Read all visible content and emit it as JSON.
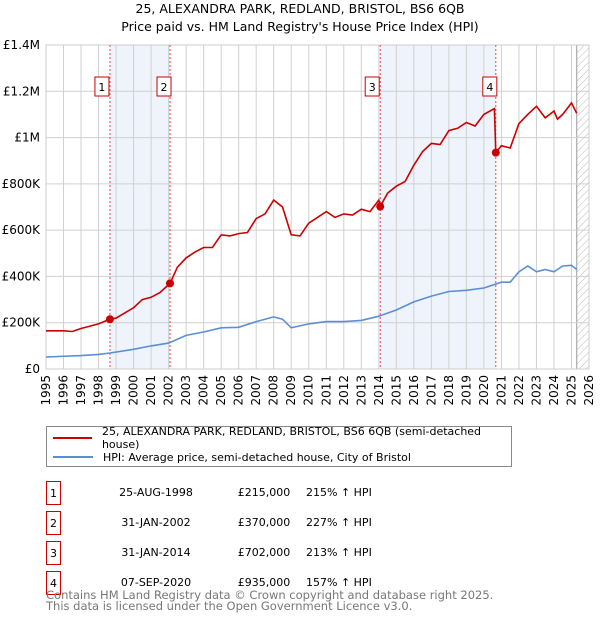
{
  "chart_data": {
    "type": "line",
    "title": "25, ALEXANDRA PARK, REDLAND, BRISTOL, BS6 6QB",
    "subtitle": "Price paid vs. HM Land Registry's House Price Index (HPI)",
    "xlim": [
      1995,
      2026
    ],
    "ylim": [
      0,
      1400000
    ],
    "grid": true,
    "y_ticks": [
      {
        "v": 0,
        "label": "£0"
      },
      {
        "v": 200000,
        "label": "£200K"
      },
      {
        "v": 400000,
        "label": "£400K"
      },
      {
        "v": 600000,
        "label": "£600K"
      },
      {
        "v": 800000,
        "label": "£800K"
      },
      {
        "v": 1000000,
        "label": "£1M"
      },
      {
        "v": 1200000,
        "label": "£1.2M"
      },
      {
        "v": 1400000,
        "label": "£1.4M"
      }
    ],
    "x_ticks": [
      "1995",
      "1996",
      "1997",
      "1998",
      "1999",
      "2000",
      "2001",
      "2002",
      "2003",
      "2004",
      "2005",
      "2006",
      "2007",
      "2008",
      "2009",
      "2010",
      "2011",
      "2012",
      "2013",
      "2014",
      "2015",
      "2016",
      "2017",
      "2018",
      "2019",
      "2020",
      "2021",
      "2022",
      "2023",
      "2024",
      "2025",
      "2026"
    ],
    "shaded_ranges": [
      [
        1998.65,
        2002.08
      ],
      [
        2014.08,
        2020.68
      ]
    ],
    "hatched_from": 2025.3,
    "series": [
      {
        "name": "25, ALEXANDRA PARK, REDLAND, BRISTOL, BS6 6QB (semi-detached house)",
        "color": "#cc0000",
        "x": [
          1995,
          1996,
          1996.5,
          1997,
          1998,
          1998.65,
          1999,
          2000,
          2000.5,
          2001,
          2001.5,
          2002.08,
          2002.5,
          2003,
          2003.5,
          2004,
          2004.5,
          2005,
          2005.5,
          2006,
          2006.5,
          2007,
          2007.5,
          2008,
          2008.5,
          2009,
          2009.5,
          2010,
          2010.5,
          2011,
          2011.5,
          2012,
          2012.5,
          2013,
          2013.5,
          2014,
          2014.08,
          2014.5,
          2015,
          2015.5,
          2016,
          2016.5,
          2017,
          2017.5,
          2018,
          2018.5,
          2019,
          2019.5,
          2020,
          2020.6,
          2020.68,
          2021,
          2021.5,
          2022,
          2022.5,
          2023,
          2023.5,
          2024,
          2024.2,
          2024.5,
          2025,
          2025.3
        ],
        "y": [
          165000,
          165000,
          162000,
          175000,
          195000,
          215000,
          220000,
          265000,
          300000,
          310000,
          330000,
          370000,
          440000,
          480000,
          505000,
          525000,
          525000,
          580000,
          575000,
          585000,
          590000,
          650000,
          670000,
          730000,
          700000,
          580000,
          575000,
          630000,
          655000,
          680000,
          655000,
          670000,
          665000,
          690000,
          680000,
          730000,
          702000,
          760000,
          790000,
          810000,
          880000,
          940000,
          975000,
          970000,
          1030000,
          1040000,
          1065000,
          1050000,
          1100000,
          1125000,
          935000,
          965000,
          955000,
          1060000,
          1100000,
          1135000,
          1085000,
          1115000,
          1080000,
          1100000,
          1150000,
          1105000
        ]
      },
      {
        "name": "HPI: Average price, semi-detached house, City of Bristol",
        "color": "#5b8fd4",
        "x": [
          1995,
          1997,
          1998,
          1998.65,
          2000,
          2001,
          2002,
          2003,
          2004,
          2005,
          2006,
          2007,
          2008,
          2008.5,
          2009,
          2010,
          2011,
          2012,
          2013,
          2014,
          2015,
          2016,
          2017,
          2018,
          2019,
          2020,
          2021,
          2021.5,
          2022,
          2022.5,
          2023,
          2023.5,
          2024,
          2024.5,
          2025,
          2025.3
        ],
        "y": [
          52000,
          58000,
          63000,
          69000,
          85000,
          100000,
          112000,
          145000,
          160000,
          178000,
          180000,
          205000,
          225000,
          215000,
          178000,
          195000,
          205000,
          205000,
          210000,
          228000,
          255000,
          290000,
          315000,
          335000,
          340000,
          350000,
          375000,
          375000,
          420000,
          445000,
          420000,
          430000,
          420000,
          445000,
          448000,
          430000
        ]
      }
    ],
    "sales": [
      {
        "n": "1",
        "x": 1998.65,
        "y": 215000
      },
      {
        "n": "2",
        "x": 2002.08,
        "y": 370000
      },
      {
        "n": "3",
        "x": 2014.08,
        "y": 702000
      },
      {
        "n": "4",
        "x": 2020.68,
        "y": 935000
      }
    ]
  },
  "legend": {
    "red": "25, ALEXANDRA PARK, REDLAND, BRISTOL, BS6 6QB (semi-detached house)",
    "blue": "HPI: Average price, semi-detached house, City of Bristol"
  },
  "table": [
    {
      "n": "1",
      "date": "25-AUG-1998",
      "price": "£215,000",
      "hpi": "215% ↑ HPI"
    },
    {
      "n": "2",
      "date": "31-JAN-2002",
      "price": "£370,000",
      "hpi": "227% ↑ HPI"
    },
    {
      "n": "3",
      "date": "31-JAN-2014",
      "price": "£702,000",
      "hpi": "213% ↑ HPI"
    },
    {
      "n": "4",
      "date": "07-SEP-2020",
      "price": "£935,000",
      "hpi": "157% ↑ HPI"
    }
  ],
  "footer": {
    "line1": "Contains HM Land Registry data © Crown copyright and database right 2025.",
    "line2": "This data is licensed under the Open Government Licence v3.0."
  }
}
